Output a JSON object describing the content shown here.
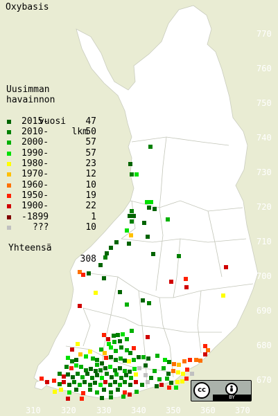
{
  "title": "Oxybasis",
  "colors": {
    "background": "#e9ecd3",
    "land": "#ffffff",
    "border": "#b8bcb0",
    "axis_text": "#ffffff"
  },
  "legend": {
    "heading_lines": [
      "Uusimman",
      "havainnon",
      "vuosi"
    ],
    "count_heading": "lkm",
    "items": [
      {
        "label": "2015-",
        "count": "47",
        "color": "#006400"
      },
      {
        "label": "2010-",
        "count": "50",
        "color": "#008000"
      },
      {
        "label": "2000-",
        "count": "57",
        "color": "#00b000"
      },
      {
        "label": "1990-",
        "count": "57",
        "color": "#00e000"
      },
      {
        "label": "1980-",
        "count": "23",
        "color": "#ffff00"
      },
      {
        "label": "1970-",
        "count": "12",
        "color": "#ffc000"
      },
      {
        "label": "1960-",
        "count": "10",
        "color": "#ff7000"
      },
      {
        "label": "1950-",
        "count": "19",
        "color": "#ff2000"
      },
      {
        "label": "1900-",
        "count": "22",
        "color": "#d00000"
      },
      {
        "label": "-1899",
        "count": "1",
        "color": "#800000"
      },
      {
        "label": "???",
        "count": "10",
        "color": "#c0c0c0"
      }
    ],
    "total_label": "Yhteensä",
    "total_count": "308"
  },
  "axes": {
    "x_ticks": [
      "310",
      "320",
      "330",
      "340",
      "350",
      "360",
      "370"
    ],
    "y_ticks": [
      "770",
      "760",
      "750",
      "740",
      "730",
      "720",
      "710",
      "700",
      "690",
      "680",
      "670"
    ]
  },
  "license": {
    "badge_text": "cc",
    "by_text": "BY"
  }
}
